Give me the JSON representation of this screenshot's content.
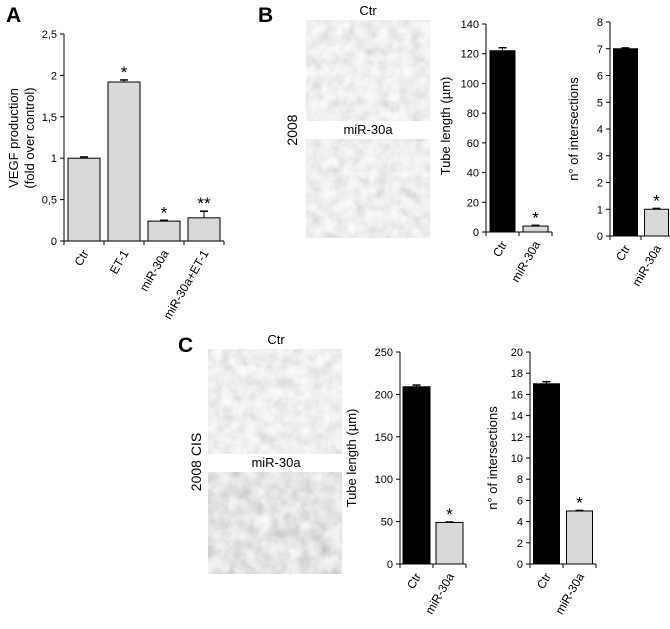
{
  "panel_letters": {
    "a": "A",
    "b": "B",
    "c": "C"
  },
  "micrographs": {
    "b": {
      "side_label": "2008",
      "top_label": "Ctr",
      "bottom_label": "miR-30a"
    },
    "c": {
      "side_label": "2008 CIS",
      "top_label": "Ctr",
      "bottom_label": "miR-30a"
    }
  },
  "chart_data": [
    {
      "id": "A",
      "type": "bar",
      "ylabel_lines": [
        "VEGF production",
        "(fold over control)"
      ],
      "ylim": [
        0,
        2.5
      ],
      "yticks": [
        0,
        0.5,
        1,
        1.5,
        2,
        2.5
      ],
      "ytick_labels": [
        "0",
        "0,5",
        "1",
        "1,5",
        "2",
        "2,5"
      ],
      "categories": [
        "Ctr",
        "ET-1",
        "miR-30a",
        "miR-30a+ET-1"
      ],
      "values": [
        1.0,
        1.92,
        0.24,
        0.28
      ],
      "errors": [
        0.015,
        0.025,
        0.01,
        0.08
      ],
      "significance": [
        "",
        "*",
        "*",
        "**"
      ],
      "bar_colors": [
        "#d9d9d9",
        "#d9d9d9",
        "#d9d9d9",
        "#d9d9d9"
      ]
    },
    {
      "id": "B1",
      "type": "bar",
      "ylabel": "Tube length (µm)",
      "ylim": [
        0,
        140
      ],
      "yticks": [
        0,
        20,
        40,
        60,
        80,
        100,
        120,
        140
      ],
      "ytick_labels": [
        "0",
        "20",
        "40",
        "60",
        "80",
        "100",
        "120",
        "140"
      ],
      "categories": [
        "Ctr",
        "miR-30a"
      ],
      "values": [
        122,
        4
      ],
      "errors": [
        2,
        0.5
      ],
      "significance": [
        "",
        "*"
      ],
      "bar_colors": [
        "#000000",
        "#d9d9d9"
      ]
    },
    {
      "id": "B2",
      "type": "bar",
      "ylabel": "n° of intersections",
      "ylim": [
        0,
        8
      ],
      "yticks": [
        0,
        1,
        2,
        3,
        4,
        5,
        6,
        7,
        8
      ],
      "ytick_labels": [
        "0",
        "1",
        "2",
        "3",
        "4",
        "5",
        "6",
        "7",
        "8"
      ],
      "categories": [
        "Ctr",
        "miR-30a"
      ],
      "values": [
        7,
        1
      ],
      "errors": [
        0.03,
        0.03
      ],
      "significance": [
        "",
        "*"
      ],
      "bar_colors": [
        "#000000",
        "#d9d9d9"
      ]
    },
    {
      "id": "C1",
      "type": "bar",
      "ylabel": "Tube length (µm)",
      "ylim": [
        0,
        250
      ],
      "yticks": [
        0,
        50,
        100,
        150,
        200,
        250
      ],
      "ytick_labels": [
        "0",
        "50",
        "100",
        "150",
        "200",
        "250"
      ],
      "categories": [
        "Ctr",
        "miR-30a"
      ],
      "values": [
        209,
        49
      ],
      "errors": [
        2,
        0.5
      ],
      "significance": [
        "",
        "*"
      ],
      "bar_colors": [
        "#000000",
        "#d9d9d9"
      ]
    },
    {
      "id": "C2",
      "type": "bar",
      "ylabel": "n° of intersections",
      "ylim": [
        0,
        20
      ],
      "yticks": [
        0,
        2,
        4,
        6,
        8,
        10,
        12,
        14,
        16,
        18,
        20
      ],
      "ytick_labels": [
        "0",
        "2",
        "4",
        "6",
        "8",
        "10",
        "12",
        "14",
        "16",
        "18",
        "20"
      ],
      "categories": [
        "Ctr",
        "miR-30a"
      ],
      "values": [
        17,
        5
      ],
      "errors": [
        0.2,
        0.05
      ],
      "significance": [
        "",
        "*"
      ],
      "bar_colors": [
        "#000000",
        "#d9d9d9"
      ]
    }
  ]
}
